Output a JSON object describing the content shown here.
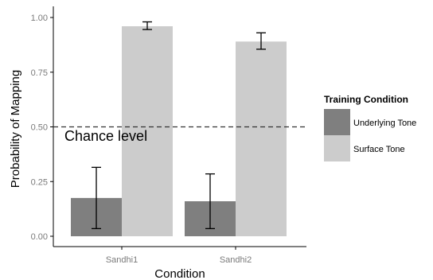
{
  "chart_data": {
    "type": "bar",
    "categories": [
      "Sandhi1",
      "Sandhi2"
    ],
    "series": [
      {
        "name": "Underlying Tone",
        "color": "#7f7f7f",
        "values": [
          0.175,
          0.16
        ],
        "error_low": [
          0.035,
          0.035
        ],
        "error_high": [
          0.315,
          0.285
        ]
      },
      {
        "name": "Surface Tone",
        "color": "#cccccc",
        "values": [
          0.96,
          0.89
        ],
        "error_low": [
          0.945,
          0.855
        ],
        "error_high": [
          0.98,
          0.93
        ]
      }
    ],
    "xlabel": "Condition",
    "ylabel": "Probability of Mapping",
    "ylim": [
      0,
      1
    ],
    "yticks": [
      0.0,
      0.25,
      0.5,
      0.75,
      1.0
    ],
    "ytick_labels": [
      "0.00",
      "0.25",
      "0.50",
      "0.75",
      "1.00"
    ],
    "reference_line": {
      "y": 0.5,
      "style": "dashed",
      "label": "Chance level"
    },
    "legend": {
      "title": "Training Condition",
      "position": "right",
      "entries": [
        "Underlying Tone",
        "Surface Tone"
      ]
    },
    "grid": false
  }
}
